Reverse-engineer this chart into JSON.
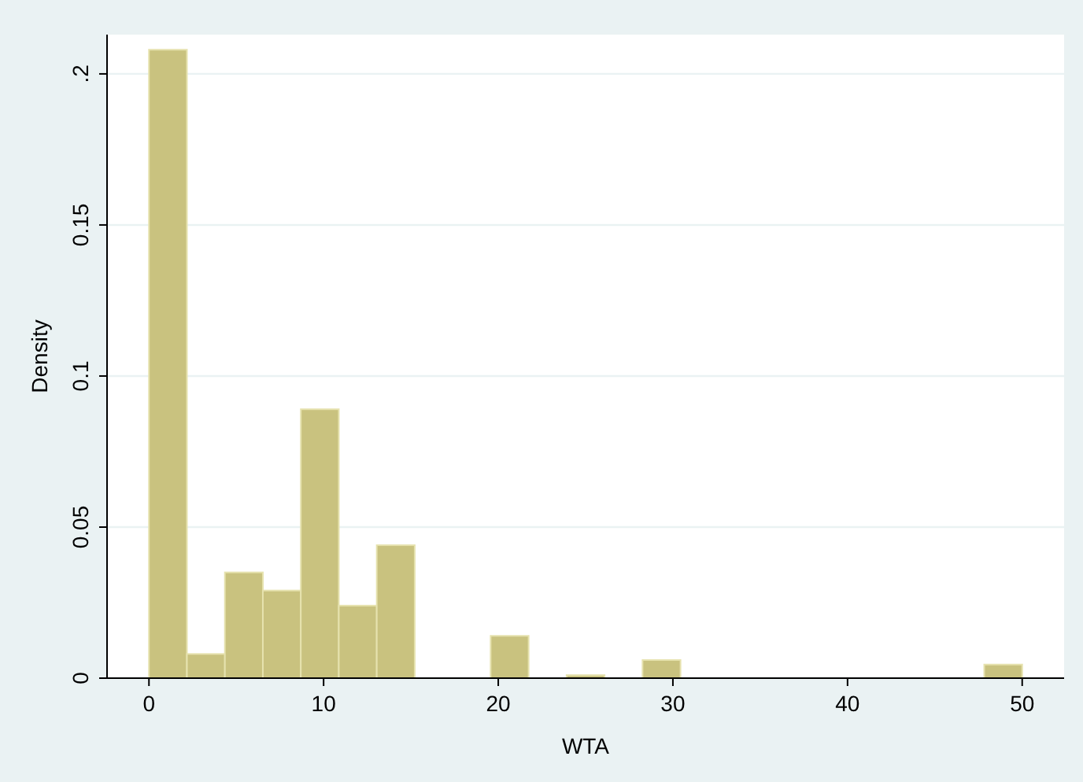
{
  "chart_data": {
    "type": "histogram",
    "xlabel": "WTA",
    "ylabel": "Density",
    "bins": [
      0,
      2.174,
      4.348,
      6.522,
      8.696,
      10.87,
      13.043,
      15.217,
      17.391,
      19.565,
      21.739,
      23.913,
      26.087,
      28.261,
      30.435,
      32.609,
      34.783,
      36.957,
      39.13,
      41.304,
      43.478,
      45.652,
      47.826,
      50
    ],
    "values": [
      0.208,
      0.008,
      0.035,
      0.029,
      0.089,
      0.024,
      0.044,
      0,
      0,
      0.014,
      0,
      0.001,
      0,
      0.006,
      0,
      0,
      0,
      0,
      0,
      0,
      0,
      0,
      0.0045
    ],
    "color": "#c9c27f",
    "xlim": [
      -2.4,
      52.4
    ],
    "ylim": [
      0,
      0.213
    ],
    "xticks": [
      0,
      10,
      20,
      30,
      40,
      50
    ],
    "yticks": [
      0,
      0.05,
      0.1,
      0.15,
      {
        "value": 0.2,
        "label": ".2"
      }
    ],
    "grid": "y"
  }
}
